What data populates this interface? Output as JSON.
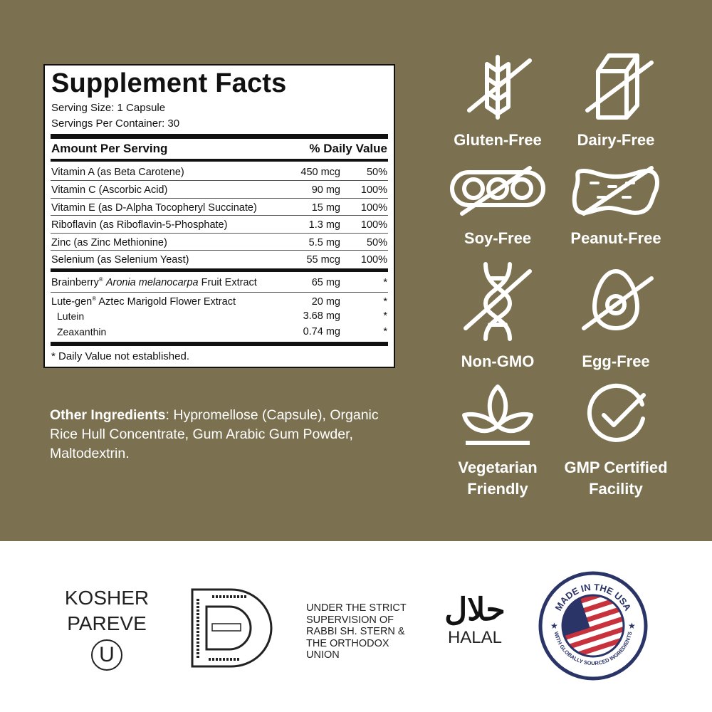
{
  "facts": {
    "title": "Supplement Facts",
    "serving_size": "Serving Size: 1 Capsule",
    "servings_per_container": "Servings Per Container: 30",
    "header_amount": "Amount Per Serving",
    "header_dv": "% Daily Value",
    "rows": [
      {
        "name": "Vitamin A (as Beta Carotene)",
        "amount": "450 mcg",
        "dv": "50%"
      },
      {
        "name": "Vitamin C (Ascorbic Acid)",
        "amount": "90 mg",
        "dv": "100%"
      },
      {
        "name": "Vitamin E (as D-Alpha Tocopheryl Succinate)",
        "amount": "15 mg",
        "dv": "100%"
      },
      {
        "name": "Riboflavin (as Riboflavin-5-Phosphate)",
        "amount": "1.3 mg",
        "dv": "100%"
      },
      {
        "name": "Zinc (as Zinc Methionine)",
        "amount": "5.5 mg",
        "dv": "50%"
      },
      {
        "name": "Selenium (as Selenium Yeast)",
        "amount": "55 mcg",
        "dv": "100%"
      }
    ],
    "extracts": [
      {
        "name_a": "Brainberry",
        "reg": "®",
        "name_italic": "Aronia melanocarpa",
        "name_b": "Fruit Extract",
        "amount": "65 mg",
        "dv": "*"
      },
      {
        "name_a": "Lute-gen",
        "reg": "®",
        "name_italic": "",
        "name_b": "Aztec Marigold Flower Extract",
        "amount": "20 mg",
        "dv": "*"
      },
      {
        "name": "Lutein",
        "amount": "3.68 mg",
        "dv": "*"
      },
      {
        "name": "Zeaxanthin",
        "amount": "0.74 mg",
        "dv": "*"
      }
    ],
    "footnote": "* Daily Value not established."
  },
  "other_ingredients": {
    "label": "Other Ingredients",
    "text": ": Hypromellose (Capsule), Organic Rice Hull Concentrate, Gum Arabic Gum Powder, Maltodextrin."
  },
  "badges": [
    {
      "icon": "wheat-crossed-icon",
      "label": "Gluten-Free"
    },
    {
      "icon": "milk-carton-crossed-icon",
      "label": "Dairy-Free"
    },
    {
      "icon": "soybean-crossed-icon",
      "label": "Soy-Free"
    },
    {
      "icon": "peanut-crossed-icon",
      "label": "Peanut-Free"
    },
    {
      "icon": "dna-crossed-icon",
      "label": "Non-GMO"
    },
    {
      "icon": "egg-crossed-icon",
      "label": "Egg-Free"
    },
    {
      "icon": "leaf-icon",
      "label_1": "Vegetarian",
      "label_2": "Friendly"
    },
    {
      "icon": "check-circle-icon",
      "label_1": "GMP Certified",
      "label_2": "Facility"
    }
  ],
  "certifications": {
    "kosher_1": "KOSHER",
    "kosher_2": "PAREVE",
    "ou_symbol": "U",
    "supervision": [
      "UNDER THE STRICT",
      "SUPERVISION OF",
      "RABBI SH. STERN &",
      "THE ORTHODOX",
      "UNION"
    ],
    "halal_arabic": "حلال",
    "halal": "HALAL",
    "usa_top": "MADE IN THE USA",
    "usa_bottom": "WITH GLOBALLY SOURCED INGREDIENTS"
  },
  "colors": {
    "background": "#7b7150",
    "navy": "#2b3467",
    "red": "#c8323c"
  }
}
